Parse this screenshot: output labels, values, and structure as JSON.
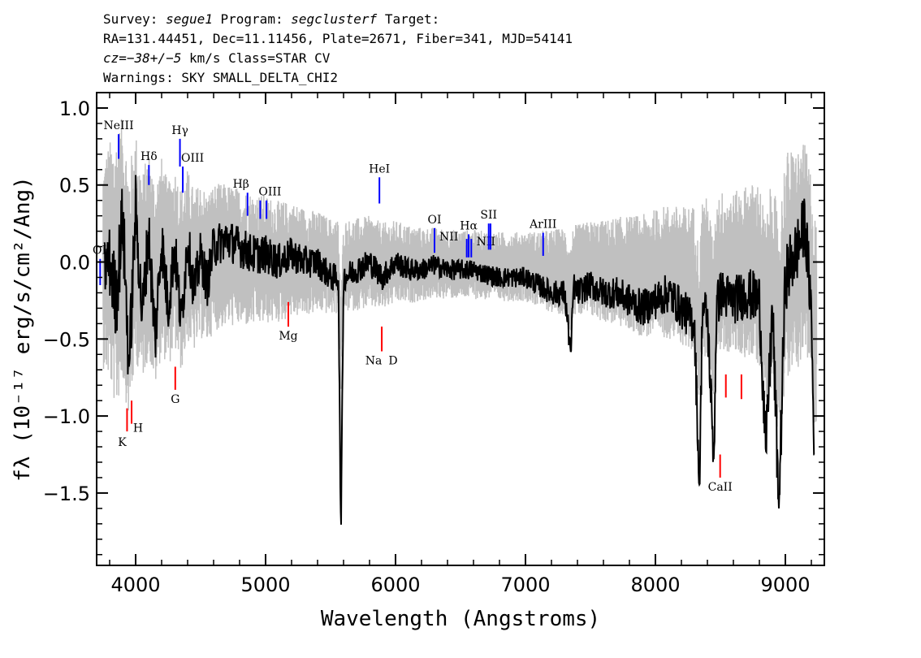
{
  "header": {
    "line1": {
      "survey_label": "Survey:",
      "survey": "segue1",
      "program_label": "Program:",
      "program": "segclusterf",
      "target_label": "Target:"
    },
    "line2": "RA=131.44451, Dec=11.11456, Plate=2671, Fiber=341, MJD=54141",
    "line3": {
      "cz": "cz=−38+/−5",
      "units_class": "km/s Class=STAR CV"
    },
    "line4": "Warnings: SKY SMALL_DELTA_CHI2"
  },
  "chart_data": {
    "type": "line",
    "xlabel": "Wavelength (Angstroms)",
    "ylabel": "fλ (10⁻¹⁷ erg/s/cm²/Ang)",
    "xlim": [
      3700,
      9300
    ],
    "ylim": [
      -1.97,
      1.1
    ],
    "x_ticks": [
      4000,
      5000,
      6000,
      7000,
      8000,
      9000
    ],
    "x_tick_labels": [
      "4000",
      "5000",
      "6000",
      "7000",
      "8000",
      "9000"
    ],
    "y_ticks": [
      1.0,
      0.5,
      0.0,
      -0.5,
      -1.0,
      -1.5
    ],
    "y_tick_labels": [
      "1.0",
      "0.5",
      "0.0",
      "−0.5",
      "−1.0",
      "−1.5"
    ],
    "series": [
      {
        "role": "flux",
        "color": "#000000",
        "x": [
          3750,
          3800,
          3850,
          3900,
          3950,
          4000,
          4050,
          4100,
          4150,
          4200,
          4250,
          4300,
          4350,
          4400,
          4450,
          4500,
          4550,
          4600,
          4700,
          4800,
          4900,
          5000,
          5100,
          5200,
          5300,
          5400,
          5500,
          5560,
          5580,
          5600,
          5700,
          5800,
          5900,
          6000,
          6100,
          6200,
          6300,
          6400,
          6500,
          6600,
          6700,
          6800,
          6900,
          7000,
          7100,
          7200,
          7300,
          7350,
          7370,
          7400,
          7500,
          7600,
          7700,
          7800,
          7900,
          8000,
          8100,
          8200,
          8300,
          8340,
          8360,
          8400,
          8450,
          8470,
          8500,
          8600,
          8700,
          8800,
          8850,
          8900,
          8950,
          9000,
          9050,
          9100,
          9150,
          9200,
          9220
        ],
        "y": [
          -0.05,
          0.0,
          -0.25,
          0.3,
          -0.7,
          0.35,
          -0.35,
          0.2,
          -0.5,
          0.15,
          -0.3,
          0.1,
          -0.4,
          0.15,
          -0.2,
          0.05,
          -0.15,
          0.1,
          0.15,
          0.1,
          0.05,
          0.05,
          0.0,
          0.05,
          0.0,
          0.0,
          -0.1,
          -0.1,
          -1.79,
          -0.1,
          -0.05,
          0.0,
          -0.1,
          0.0,
          -0.05,
          -0.05,
          -0.02,
          -0.05,
          -0.05,
          -0.05,
          -0.08,
          -0.1,
          -0.1,
          -0.1,
          -0.15,
          -0.2,
          -0.2,
          -0.6,
          -0.15,
          -0.2,
          -0.15,
          -0.2,
          -0.2,
          -0.25,
          -0.3,
          -0.25,
          -0.2,
          -0.3,
          -0.4,
          -1.5,
          -0.3,
          -0.35,
          -1.3,
          -0.3,
          -0.2,
          -0.25,
          -0.2,
          -0.25,
          -1.25,
          -0.3,
          -1.6,
          -0.1,
          0.0,
          0.1,
          0.25,
          -0.3,
          -1.25
        ]
      },
      {
        "role": "error",
        "color": "#c0c0c0",
        "x": [
          3750,
          3850,
          3950,
          4050,
          4150,
          4250,
          4350,
          4450,
          4600,
          4800,
          5000,
          5200,
          5400,
          5600,
          5800,
          6000,
          6200,
          6400,
          6600,
          6800,
          7000,
          7200,
          7400,
          7600,
          7800,
          8000,
          8200,
          8400,
          8600,
          8800,
          9000,
          9200
        ],
        "y": [
          0.45,
          0.6,
          0.55,
          0.45,
          0.45,
          0.4,
          0.4,
          0.35,
          0.32,
          0.3,
          0.28,
          0.25,
          0.22,
          0.2,
          0.2,
          0.18,
          0.16,
          0.15,
          0.15,
          0.15,
          0.15,
          0.18,
          0.2,
          0.22,
          0.25,
          0.28,
          0.3,
          0.35,
          0.35,
          0.4,
          0.5,
          0.45
        ]
      }
    ],
    "lines": [
      {
        "label": "NeIII",
        "wave": 3869,
        "y_low": 0.67,
        "y_high": 0.83,
        "color": "#0000ff"
      },
      {
        "label": "Hδ",
        "wave": 4102,
        "y_low": 0.5,
        "y_high": 0.63,
        "color": "#0000ff"
      },
      {
        "label": "Hγ",
        "wave": 4341,
        "y_low": 0.62,
        "y_high": 0.8,
        "color": "#0000ff"
      },
      {
        "label": "OIII",
        "wave": 4363,
        "y_low": 0.45,
        "y_high": 0.62,
        "color": "#0000ff"
      },
      {
        "label": "Hβ",
        "wave": 4861,
        "y_low": 0.3,
        "y_high": 0.45,
        "color": "#0000ff"
      },
      {
        "label": "OIII",
        "wave": 4959,
        "y_low": 0.28,
        "y_high": 0.4,
        "color": "#0000ff"
      },
      {
        "label": "",
        "wave": 5007,
        "y_low": 0.28,
        "y_high": 0.4,
        "color": "#0000ff"
      },
      {
        "label": "HeI",
        "wave": 5876,
        "y_low": 0.38,
        "y_high": 0.55,
        "color": "#0000ff"
      },
      {
        "label": "OI",
        "wave": 6300,
        "y_low": 0.06,
        "y_high": 0.22,
        "color": "#0000ff"
      },
      {
        "label": "NII",
        "wave": 6548,
        "y_low": 0.03,
        "y_high": 0.15,
        "color": "#0000ff"
      },
      {
        "label": "Hα",
        "wave": 6563,
        "y_low": 0.03,
        "y_high": 0.18,
        "color": "#0000ff"
      },
      {
        "label": "NII",
        "wave": 6583,
        "y_low": 0.03,
        "y_high": 0.15,
        "color": "#0000ff"
      },
      {
        "label": "SII",
        "wave": 6717,
        "y_low": 0.08,
        "y_high": 0.25,
        "color": "#0000ff"
      },
      {
        "label": "",
        "wave": 6731,
        "y_low": 0.08,
        "y_high": 0.25,
        "color": "#0000ff"
      },
      {
        "label": "ArIII",
        "wave": 7136,
        "y_low": 0.04,
        "y_high": 0.19,
        "color": "#0000ff"
      },
      {
        "label": "OII",
        "wave": 3727,
        "y_low": -0.15,
        "y_high": 0.02,
        "color": "#0000ff"
      },
      {
        "label": "K",
        "wave": 3934,
        "y_low": -1.1,
        "y_high": -0.95,
        "color": "#ff0000"
      },
      {
        "label": "H",
        "wave": 3969,
        "y_low": -1.05,
        "y_high": -0.9,
        "color": "#ff0000"
      },
      {
        "label": "G",
        "wave": 4305,
        "y_low": -0.83,
        "y_high": -0.68,
        "color": "#ff0000"
      },
      {
        "label": "Mg",
        "wave": 5175,
        "y_low": -0.42,
        "y_high": -0.26,
        "color": "#ff0000"
      },
      {
        "label": "Na",
        "wave": 5894,
        "y_low": -0.58,
        "y_high": -0.42,
        "color": "#ff0000"
      },
      {
        "label": "D",
        "wave": 5894,
        "y_low": -0.58,
        "y_high": -0.42,
        "color": "#ff0000"
      },
      {
        "label": "CaII",
        "wave": 8498,
        "y_low": -1.4,
        "y_high": -1.25,
        "color": "#ff0000"
      },
      {
        "label": "",
        "wave": 8542,
        "y_low": -0.88,
        "y_high": -0.73,
        "color": "#ff0000"
      },
      {
        "label": "",
        "wave": 8662,
        "y_low": -0.89,
        "y_high": -0.73,
        "color": "#ff0000"
      }
    ]
  }
}
